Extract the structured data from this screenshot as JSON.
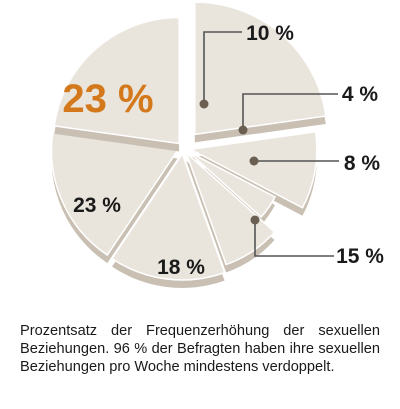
{
  "chart_data": {
    "type": "pie",
    "style": "3d-exploded",
    "slices": [
      {
        "label": "23 %",
        "value": 23,
        "highlight": true
      },
      {
        "label": "10 %",
        "value": 10
      },
      {
        "label": "4 %",
        "value": 4
      },
      {
        "label": "8 %",
        "value": 8
      },
      {
        "label": "15 %",
        "value": 15
      },
      {
        "label": "18 %",
        "value": 18
      },
      {
        "label": "23 %",
        "value": 23
      }
    ],
    "colors": {
      "slice_fill": "#e9e4dc",
      "slice_edge": "#c9c0b3",
      "highlight_text": "#d4781c",
      "leader_line": "#555555",
      "dot": "#6b5f52"
    }
  },
  "caption": "Prozentsatz der Frequenzerhöhung der sexuellen Beziehungen. 96 % der Befragten haben ihre sexuellen Beziehungen pro Woche mindestens verdoppelt."
}
